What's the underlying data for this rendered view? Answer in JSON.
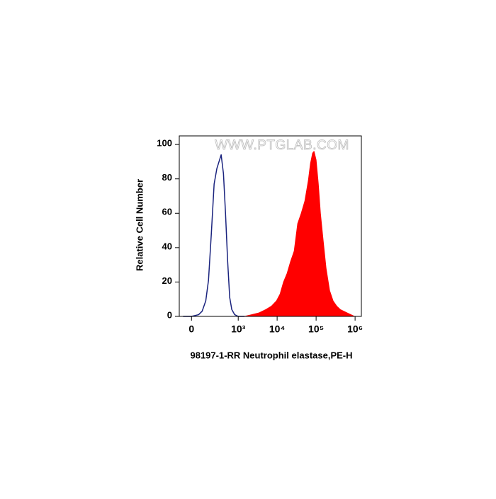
{
  "chart_data": {
    "type": "histogram-overlay",
    "watermark": "WWW.PTGLAB.COM",
    "ylabel": "Relative Cell Number",
    "xlabel": "98197-1-RR Neutrophil elastase,PE-H",
    "xscale": "asinh",
    "xlim": [
      -100,
      1450000
    ],
    "xticks": [
      0,
      {
        "value": 1000,
        "label": "10³"
      },
      {
        "value": 10000,
        "label": "10⁴"
      },
      {
        "value": 100000,
        "label": "10⁵"
      },
      {
        "value": 1000000,
        "label": "10⁶"
      }
    ],
    "ylim": [
      0,
      105
    ],
    "yticks": [
      0,
      20,
      40,
      60,
      80,
      100
    ],
    "series": [
      {
        "color": "#1a237e",
        "fill": false,
        "x": [
          -66,
          0,
          55,
          85,
          120,
          150,
          185,
          225,
          270,
          310,
          355,
          410,
          465,
          530,
          600,
          680,
          810,
          1000,
          1460
        ],
        "values": [
          0,
          0,
          1,
          3,
          9,
          21,
          48,
          77,
          86,
          90,
          94,
          83,
          60,
          32,
          11,
          4,
          1,
          0,
          0
        ]
      },
      {
        "color": "#ff0000",
        "fill": true,
        "x": [
          1460,
          2220,
          3380,
          5140,
          7180,
          9620,
          11900,
          14600,
          18000,
          22200,
          27400,
          33700,
          41600,
          51300,
          63200,
          71800,
          81300,
          88500,
          100000,
          114000,
          129000,
          152000,
          180000,
          222000,
          273000,
          337000,
          416000,
          632000,
          960000,
          1450000
        ],
        "values": [
          0,
          1,
          2,
          4,
          6,
          9,
          13,
          20,
          25,
          32,
          38,
          54,
          60,
          67,
          79,
          89,
          95,
          96,
          91,
          77,
          60,
          44,
          28,
          15,
          9,
          6,
          4,
          2,
          0,
          0
        ]
      }
    ]
  }
}
